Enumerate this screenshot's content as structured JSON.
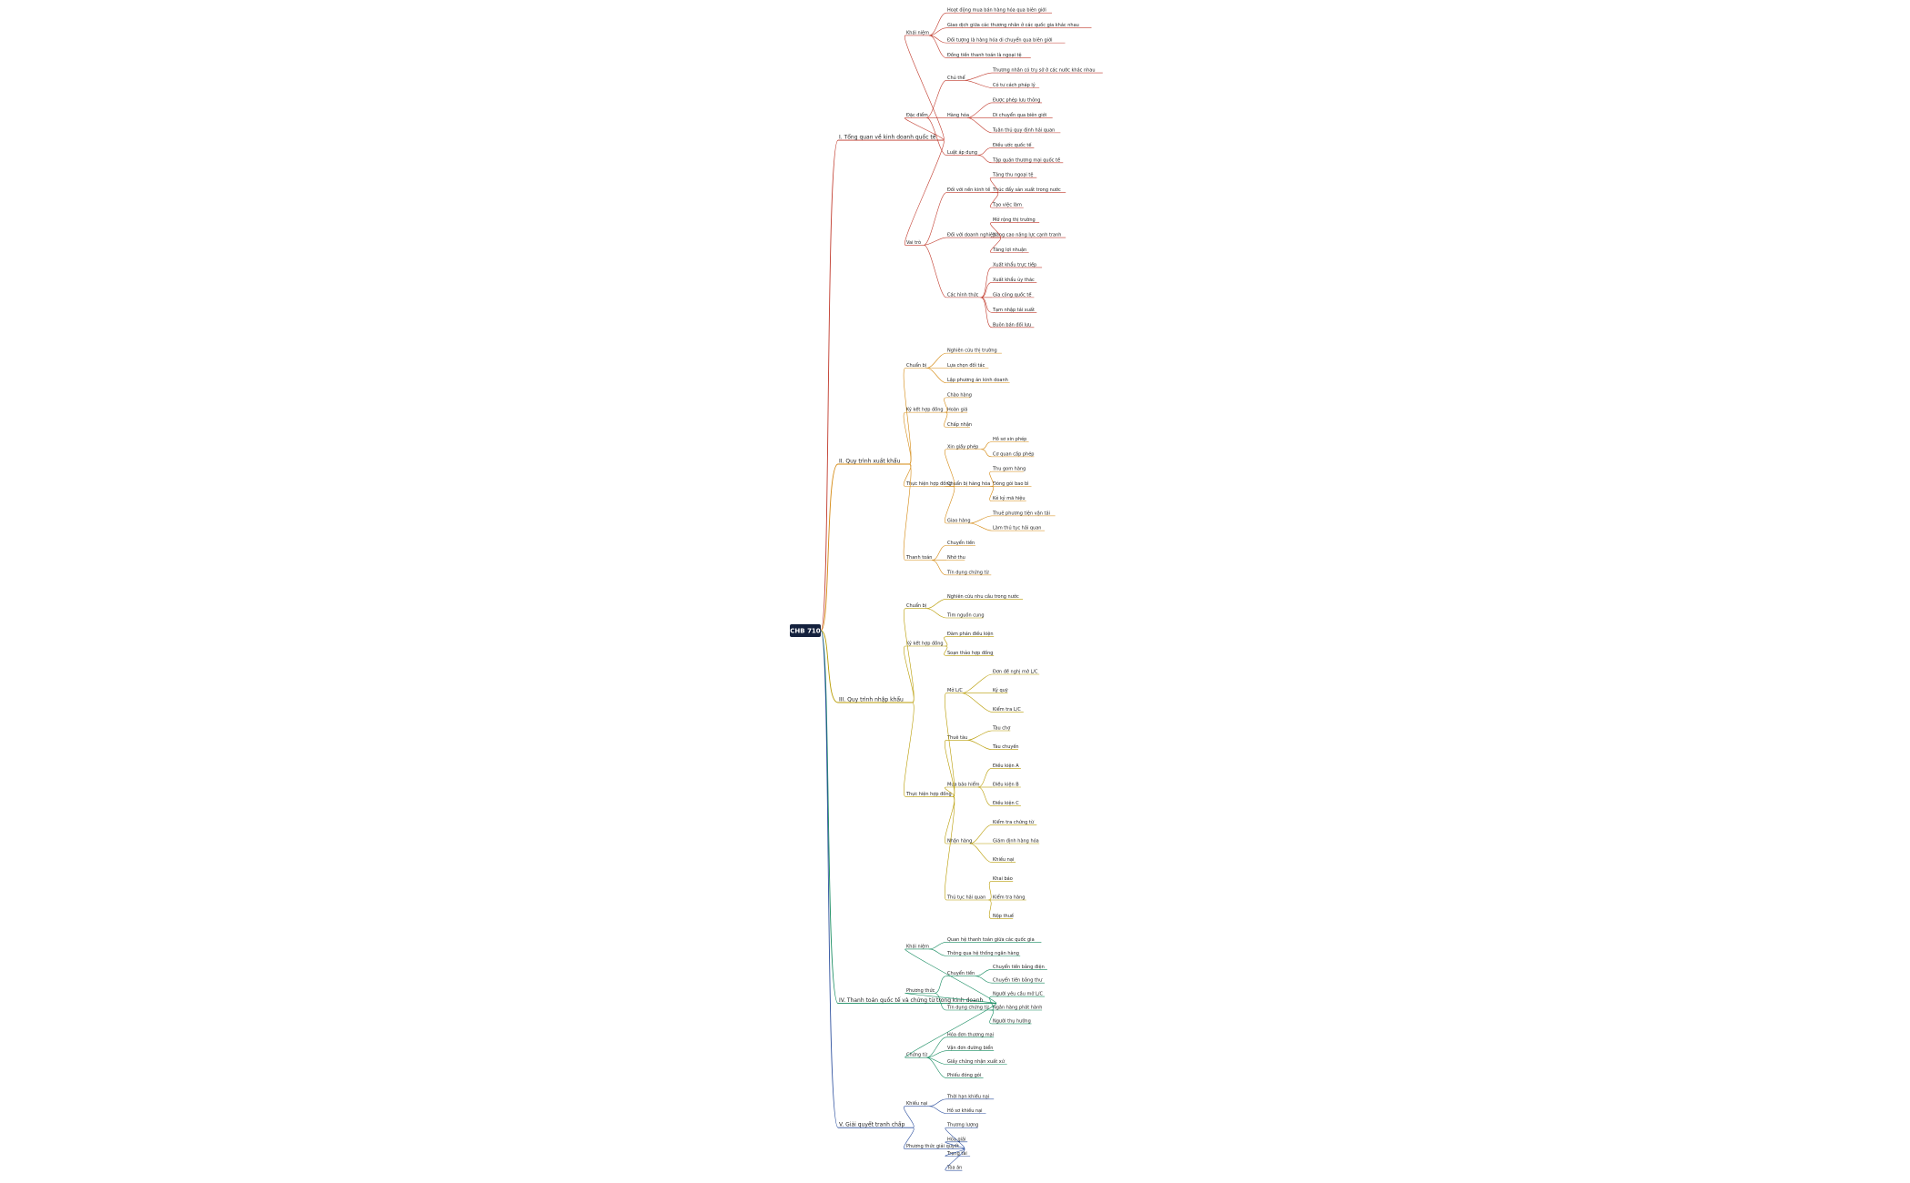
{
  "root": "CHB 710",
  "branches": [
    {
      "label": "I. Tổng quan về kinh doanh quốc tế",
      "children": [
        {
          "label": "Khái niệm",
          "children": [
            {
              "label": "Hoạt động mua bán hàng hóa qua biên giới"
            },
            {
              "label": "Giao dịch giữa các thương nhân ở các quốc gia khác nhau"
            },
            {
              "label": "Đối tượng là hàng hóa di chuyển qua biên giới"
            },
            {
              "label": "Đồng tiền thanh toán là ngoại tệ"
            }
          ]
        },
        {
          "label": "Đặc điểm",
          "children": [
            {
              "label": "Chủ thể",
              "children": [
                {
                  "label": "Thương nhân có trụ sở ở các nước khác nhau"
                },
                {
                  "label": "Có tư cách pháp lý"
                }
              ]
            },
            {
              "label": "Hàng hóa",
              "children": [
                {
                  "label": "Được phép lưu thông"
                },
                {
                  "label": "Di chuyển qua biên giới"
                },
                {
                  "label": "Tuân thủ quy định hải quan"
                }
              ]
            },
            {
              "label": "Luật áp dụng",
              "children": [
                {
                  "label": "Điều ước quốc tế"
                },
                {
                  "label": "Tập quán thương mại quốc tế"
                }
              ]
            }
          ]
        },
        {
          "label": "Vai trò",
          "children": [
            {
              "label": "Đối với nền kinh tế",
              "children": [
                {
                  "label": "Tăng thu ngoại tệ"
                },
                {
                  "label": "Thúc đẩy sản xuất trong nước"
                },
                {
                  "label": "Tạo việc làm"
                }
              ]
            },
            {
              "label": "Đối với doanh nghiệp",
              "children": [
                {
                  "label": "Mở rộng thị trường"
                },
                {
                  "label": "Nâng cao năng lực cạnh tranh"
                },
                {
                  "label": "Tăng lợi nhuận"
                }
              ]
            },
            {
              "label": "Các hình thức",
              "children": [
                {
                  "label": "Xuất khẩu trực tiếp"
                },
                {
                  "label": "Xuất khẩu ủy thác"
                },
                {
                  "label": "Gia công quốc tế"
                },
                {
                  "label": "Tạm nhập tái xuất"
                },
                {
                  "label": "Buôn bán đối lưu"
                }
              ]
            }
          ]
        }
      ]
    },
    {
      "label": "II. Quy trình xuất khẩu",
      "children": [
        {
          "label": "Chuẩn bị",
          "children": [
            {
              "label": "Nghiên cứu thị trường"
            },
            {
              "label": "Lựa chọn đối tác"
            },
            {
              "label": "Lập phương án kinh doanh"
            }
          ]
        },
        {
          "label": "Ký kết hợp đồng",
          "children": [
            {
              "label": "Chào hàng"
            },
            {
              "label": "Hoàn giá"
            },
            {
              "label": "Chấp nhận"
            }
          ]
        },
        {
          "label": "Thực hiện hợp đồng",
          "children": [
            {
              "label": "Xin giấy phép",
              "children": [
                {
                  "label": "Hồ sơ xin phép"
                },
                {
                  "label": "Cơ quan cấp phép"
                }
              ]
            },
            {
              "label": "Chuẩn bị hàng hóa",
              "children": [
                {
                  "label": "Thu gom hàng"
                },
                {
                  "label": "Đóng gói bao bì"
                },
                {
                  "label": "Kẻ ký mã hiệu"
                }
              ]
            },
            {
              "label": "Giao hàng",
              "children": [
                {
                  "label": "Thuê phương tiện vận tải"
                },
                {
                  "label": "Làm thủ tục hải quan"
                }
              ]
            }
          ]
        },
        {
          "label": "Thanh toán",
          "children": [
            {
              "label": "Chuyển tiền"
            },
            {
              "label": "Nhờ thu"
            },
            {
              "label": "Tín dụng chứng từ"
            }
          ]
        }
      ]
    },
    {
      "label": "III. Quy trình nhập khẩu",
      "children": [
        {
          "label": "Chuẩn bị",
          "children": [
            {
              "label": "Nghiên cứu nhu cầu trong nước"
            },
            {
              "label": "Tìm nguồn cung"
            }
          ]
        },
        {
          "label": "Ký kết hợp đồng",
          "children": [
            {
              "label": "Đàm phán điều kiện"
            },
            {
              "label": "Soạn thảo hợp đồng"
            }
          ]
        },
        {
          "label": "Thực hiện hợp đồng",
          "children": [
            {
              "label": "Mở L/C",
              "children": [
                {
                  "label": "Đơn đề nghị mở L/C"
                },
                {
                  "label": "Ký quỹ"
                },
                {
                  "label": "Kiểm tra L/C"
                }
              ]
            },
            {
              "label": "Thuê tàu",
              "children": [
                {
                  "label": "Tàu chợ"
                },
                {
                  "label": "Tàu chuyến"
                }
              ]
            },
            {
              "label": "Mua bảo hiểm",
              "children": [
                {
                  "label": "Điều kiện A"
                },
                {
                  "label": "Điều kiện B"
                },
                {
                  "label": "Điều kiện C"
                }
              ]
            },
            {
              "label": "Nhận hàng",
              "children": [
                {
                  "label": "Kiểm tra chứng từ"
                },
                {
                  "label": "Giám định hàng hóa"
                },
                {
                  "label": "Khiếu nại"
                }
              ]
            },
            {
              "label": "Thủ tục hải quan",
              "children": [
                {
                  "label": "Khai báo"
                },
                {
                  "label": "Kiểm tra hàng"
                },
                {
                  "label": "Nộp thuế"
                }
              ]
            }
          ]
        }
      ]
    },
    {
      "label": "IV. Thanh toán quốc tế và chứng từ trong kinh doanh",
      "children": [
        {
          "label": "Khái niệm",
          "children": [
            {
              "label": "Quan hệ thanh toán giữa các quốc gia"
            },
            {
              "label": "Thông qua hệ thống ngân hàng"
            }
          ]
        },
        {
          "label": "Phương thức",
          "children": [
            {
              "label": "Chuyển tiền",
              "children": [
                {
                  "label": "Chuyển tiền bằng điện"
                },
                {
                  "label": "Chuyển tiền bằng thư"
                }
              ]
            },
            {
              "label": "Tín dụng chứng từ",
              "children": [
                {
                  "label": "Người yêu cầu mở L/C"
                },
                {
                  "label": "Ngân hàng phát hành"
                },
                {
                  "label": "Người thụ hưởng"
                }
              ]
            }
          ]
        },
        {
          "label": "Chứng từ",
          "children": [
            {
              "label": "Hóa đơn thương mại"
            },
            {
              "label": "Vận đơn đường biển"
            },
            {
              "label": "Giấy chứng nhận xuất xứ"
            },
            {
              "label": "Phiếu đóng gói"
            }
          ]
        }
      ]
    },
    {
      "label": "V. Giải quyết tranh chấp",
      "children": [
        {
          "label": "Khiếu nại",
          "children": [
            {
              "label": "Thời hạn khiếu nại"
            },
            {
              "label": "Hồ sơ khiếu nại"
            }
          ]
        },
        {
          "label": "Phương thức giải quyết",
          "children": [
            {
              "label": "Thương lượng"
            },
            {
              "label": "Hòa giải"
            },
            {
              "label": "Trọng tài"
            },
            {
              "label": "Tòa án"
            }
          ]
        }
      ]
    }
  ]
}
